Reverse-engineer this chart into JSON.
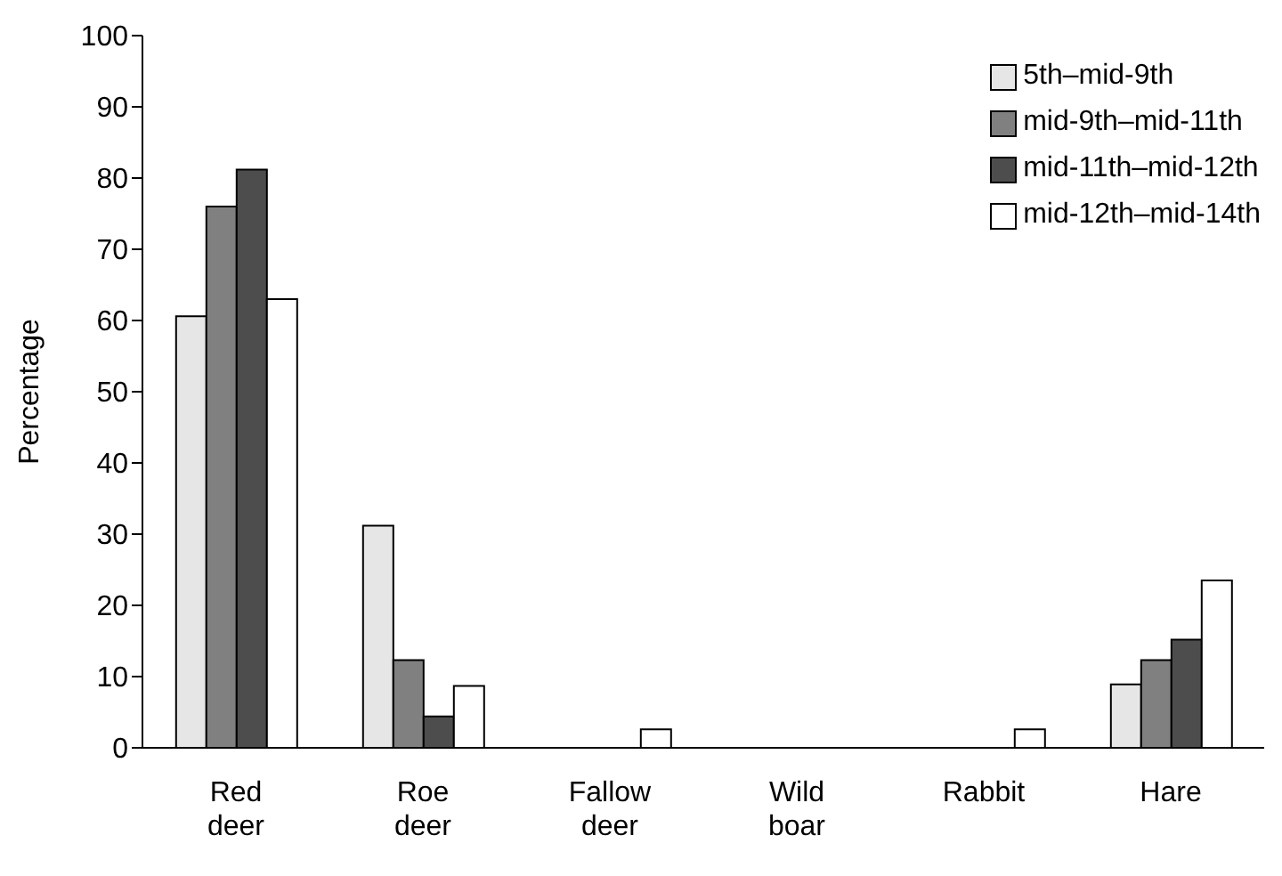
{
  "chart_data": {
    "type": "bar",
    "ylabel": "Percentage",
    "categories": [
      "Red deer",
      "Roe deer",
      "Fallow deer",
      "Wild boar",
      "Rabbit",
      "Hare"
    ],
    "series": [
      {
        "name": "5th–mid-9th",
        "color": "#e6e6e6",
        "values": [
          60.6,
          31.2,
          0,
          0,
          0,
          8.9
        ]
      },
      {
        "name": "mid-9th–mid-11th",
        "color": "#808080",
        "values": [
          76,
          12.3,
          0,
          0,
          0,
          12.3
        ]
      },
      {
        "name": "mid-11th–mid-12th",
        "color": "#4d4d4d",
        "values": [
          81.2,
          4.4,
          0,
          0,
          0,
          15.2
        ]
      },
      {
        "name": "mid-12th–mid-14th",
        "color": "#ffffff",
        "values": [
          63,
          8.7,
          2.6,
          0,
          2.6,
          23.5
        ]
      }
    ],
    "ylim": [
      0,
      100
    ],
    "yticks": [
      0,
      10,
      20,
      30,
      40,
      50,
      60,
      70,
      80,
      90,
      100
    ],
    "grid": false,
    "legend": "top right"
  }
}
